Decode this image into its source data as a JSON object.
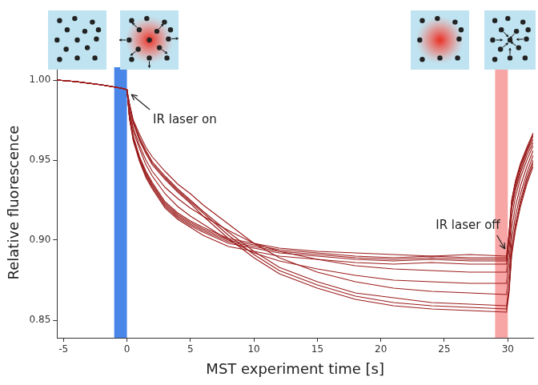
{
  "chart_data": {
    "type": "line",
    "x_label": "MST experiment time [s]",
    "y_label": "Relative fluorescence",
    "color": "#9b1c1c",
    "grid": false,
    "xlim": [
      -5.5,
      32
    ],
    "xticks": [
      -5,
      0,
      5,
      10,
      15,
      20,
      25,
      30
    ],
    "ylim": [
      0.839,
      1.008
    ],
    "yticks": [
      0.85,
      {
        "value": 0.9,
        "label": "0.90"
      },
      0.95,
      {
        "value": 1,
        "label": "1.00"
      }
    ],
    "x": [
      -5.5,
      -4,
      -2,
      -0.5,
      0,
      0.2,
      0.5,
      1,
      1.5,
      2,
      3,
      4,
      5,
      6,
      8,
      10,
      12,
      15,
      18,
      21,
      24,
      27,
      29.9,
      30.1,
      30.3,
      30.6,
      31,
      31.5,
      32
    ],
    "series": [
      {
        "values": [
          1.0,
          0.999,
          0.997,
          0.995,
          0.994,
          0.978,
          0.965,
          0.952,
          0.943,
          0.936,
          0.924,
          0.917,
          0.912,
          0.908,
          0.901,
          0.898,
          0.895,
          0.893,
          0.892,
          0.891,
          0.89,
          0.891,
          0.89,
          0.905,
          0.925,
          0.937,
          0.948,
          0.958,
          0.967
        ]
      },
      {
        "values": [
          1.0,
          0.999,
          0.997,
          0.995,
          0.994,
          0.977,
          0.964,
          0.951,
          0.942,
          0.935,
          0.923,
          0.916,
          0.911,
          0.907,
          0.9,
          0.897,
          0.894,
          0.892,
          0.89,
          0.889,
          0.89,
          0.889,
          0.889,
          0.904,
          0.924,
          0.936,
          0.947,
          0.957,
          0.966
        ]
      },
      {
        "values": [
          1.0,
          0.999,
          0.997,
          0.995,
          0.994,
          0.977,
          0.963,
          0.95,
          0.941,
          0.934,
          0.922,
          0.915,
          0.91,
          0.906,
          0.899,
          0.896,
          0.893,
          0.891,
          0.889,
          0.888,
          0.889,
          0.888,
          0.888,
          0.903,
          0.923,
          0.935,
          0.946,
          0.956,
          0.965
        ]
      },
      {
        "values": [
          1.0,
          0.999,
          0.997,
          0.995,
          0.994,
          0.976,
          0.963,
          0.95,
          0.94,
          0.933,
          0.921,
          0.914,
          0.909,
          0.905,
          0.898,
          0.895,
          0.892,
          0.89,
          0.888,
          0.887,
          0.888,
          0.887,
          0.887,
          0.902,
          0.921,
          0.933,
          0.944,
          0.955,
          0.963
        ]
      },
      {
        "values": [
          1.0,
          0.999,
          0.997,
          0.995,
          0.994,
          0.976,
          0.962,
          0.949,
          0.939,
          0.932,
          0.92,
          0.913,
          0.908,
          0.903,
          0.896,
          0.893,
          0.89,
          0.888,
          0.886,
          0.885,
          0.886,
          0.885,
          0.885,
          0.9,
          0.919,
          0.931,
          0.942,
          0.953,
          0.961
        ]
      },
      {
        "values": [
          1.0,
          0.999,
          0.997,
          0.995,
          0.994,
          0.981,
          0.97,
          0.959,
          0.95,
          0.943,
          0.933,
          0.926,
          0.92,
          0.915,
          0.906,
          0.898,
          0.893,
          0.888,
          0.884,
          0.882,
          0.881,
          0.88,
          0.88,
          0.894,
          0.914,
          0.927,
          0.939,
          0.95,
          0.959
        ]
      },
      {
        "values": [
          1.0,
          0.999,
          0.997,
          0.995,
          0.994,
          0.981,
          0.968,
          0.957,
          0.947,
          0.94,
          0.929,
          0.921,
          0.915,
          0.91,
          0.9,
          0.892,
          0.887,
          0.882,
          0.878,
          0.875,
          0.874,
          0.873,
          0.873,
          0.886,
          0.907,
          0.921,
          0.934,
          0.946,
          0.956
        ]
      },
      {
        "values": [
          1.0,
          0.999,
          0.997,
          0.995,
          0.994,
          0.985,
          0.975,
          0.966,
          0.958,
          0.952,
          0.943,
          0.935,
          0.929,
          0.922,
          0.91,
          0.898,
          0.889,
          0.88,
          0.874,
          0.87,
          0.868,
          0.867,
          0.866,
          0.878,
          0.9,
          0.915,
          0.929,
          0.942,
          0.953
        ]
      },
      {
        "values": [
          1.0,
          0.999,
          0.997,
          0.995,
          0.994,
          0.985,
          0.974,
          0.964,
          0.956,
          0.949,
          0.94,
          0.932,
          0.925,
          0.918,
          0.905,
          0.893,
          0.883,
          0.874,
          0.867,
          0.864,
          0.861,
          0.86,
          0.859,
          0.871,
          0.894,
          0.91,
          0.925,
          0.939,
          0.95
        ]
      },
      {
        "values": [
          1.0,
          0.999,
          0.997,
          0.995,
          0.994,
          0.985,
          0.974,
          0.963,
          0.955,
          0.948,
          0.939,
          0.931,
          0.924,
          0.917,
          0.903,
          0.891,
          0.881,
          0.872,
          0.865,
          0.861,
          0.859,
          0.858,
          0.857,
          0.869,
          0.892,
          0.908,
          0.923,
          0.937,
          0.948
        ]
      },
      {
        "values": [
          1.0,
          0.999,
          0.997,
          0.995,
          0.994,
          0.984,
          0.973,
          0.962,
          0.954,
          0.947,
          0.938,
          0.93,
          0.923,
          0.915,
          0.901,
          0.889,
          0.879,
          0.87,
          0.863,
          0.859,
          0.857,
          0.856,
          0.855,
          0.867,
          0.89,
          0.906,
          0.921,
          0.935,
          0.946
        ]
      }
    ],
    "shaded_ranges": [
      {
        "x0": -1,
        "x1": 0,
        "color": "#4a86e8"
      },
      {
        "x0": 29,
        "x1": 30,
        "color": "#f8a5a5"
      }
    ],
    "annotations": [
      {
        "text": "IR laser on",
        "x": 0.1,
        "y": 0.993
      },
      {
        "text": "IR laser off",
        "x": 29.9,
        "y": 0.892
      }
    ]
  }
}
